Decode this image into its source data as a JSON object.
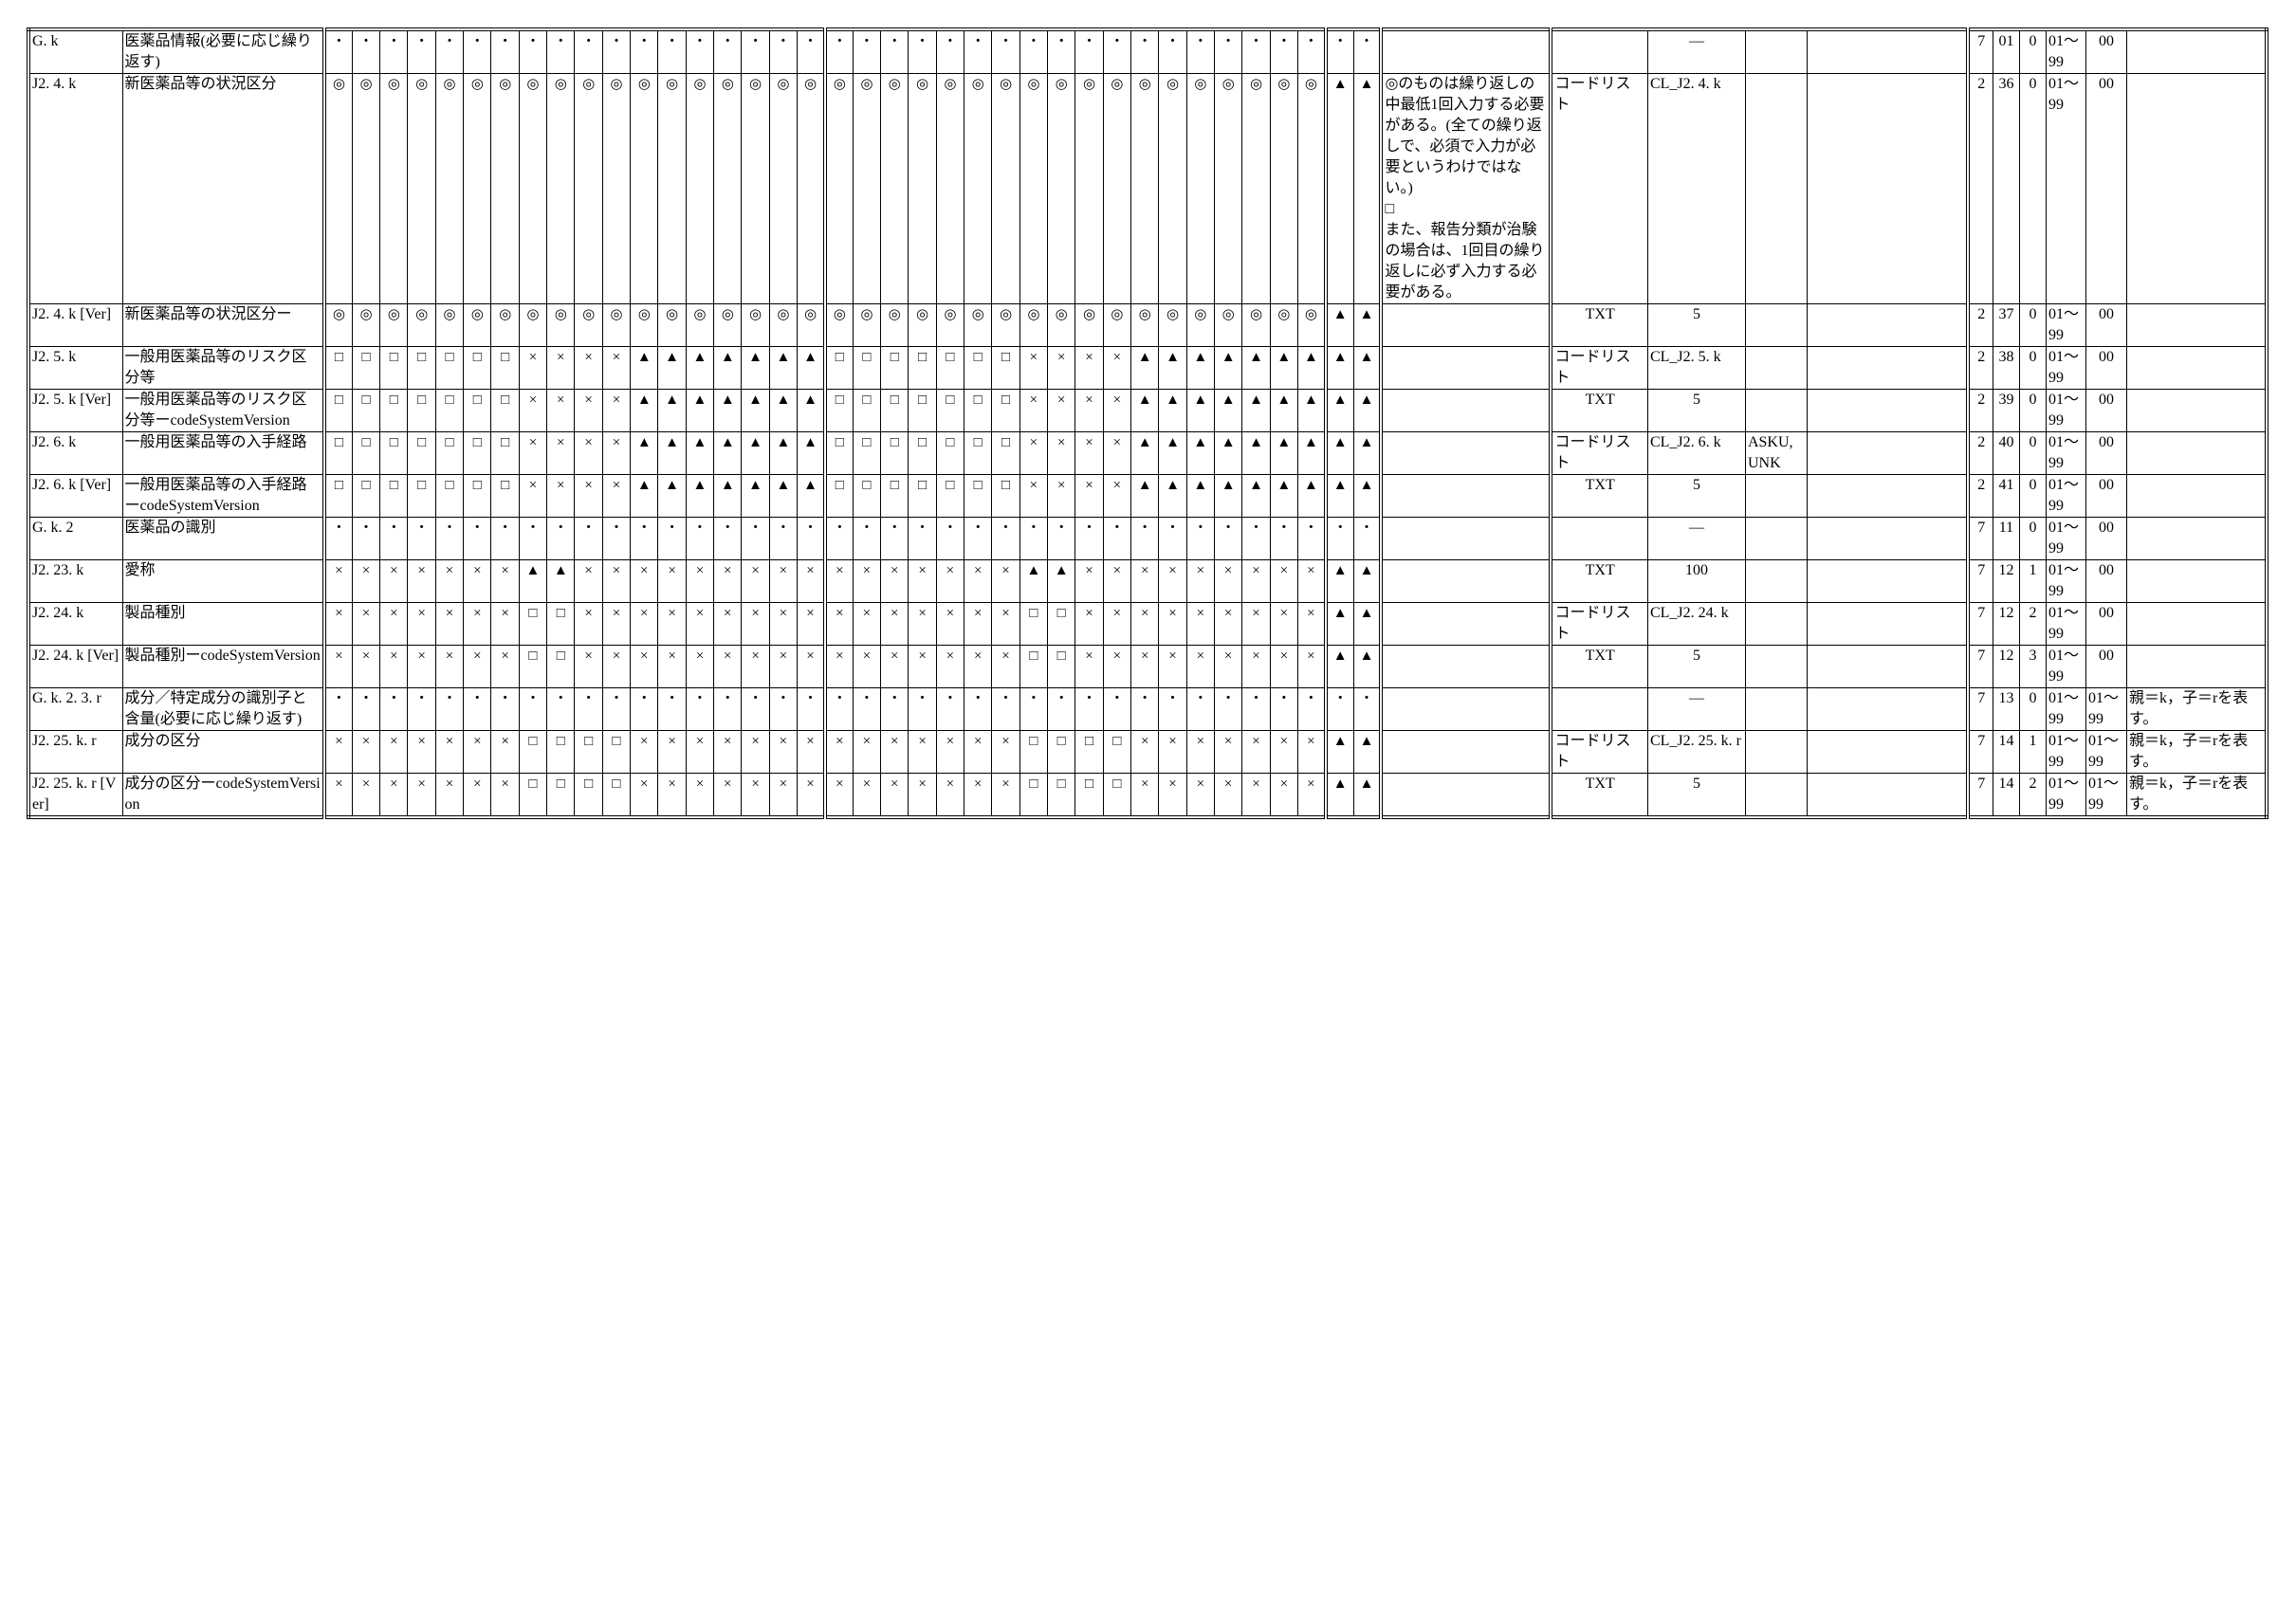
{
  "rows": [
    {
      "id": "G. k",
      "name": "医薬品情報(必要に応じ繰り返す)",
      "marks": "・・・・・・・・・・・・・・・・・・・・・・・・・・・・・・・・・・・・・・",
      "remarks": [],
      "type": "",
      "code": "—",
      "values": "",
      "blank": "",
      "c1": "7",
      "c2": "01",
      "c3": "0",
      "c4": "01～99",
      "c5": "00",
      "note": ""
    },
    {
      "id": "J2. 4. k",
      "name": "新医薬品等の状況区分",
      "marks": "◎◎◎◎◎◎◎◎◎◎◎◎◎◎◎◎◎◎◎◎◎◎◎◎◎◎◎◎◎◎◎◎◎◎◎◎▲▲",
      "remarks": [
        "◎のものは繰り返しの中最低1回入力する必要がある。(全ての繰り返しで、必須で入力が必要というわけではない。)",
        "□",
        "また、報告分類が治験の場合は、1回目の繰り返しに必ず入力する必要がある。"
      ],
      "type": "コードリスト",
      "code": "CL_J2. 4. k",
      "values": "",
      "blank": "",
      "c1": "2",
      "c2": "36",
      "c3": "0",
      "c4": "01～99",
      "c5": "00",
      "note": ""
    },
    {
      "id": "J2. 4. k [Ver]",
      "name": "新医薬品等の状況区分ー",
      "marks": "◎◎◎◎◎◎◎◎◎◎◎◎◎◎◎◎◎◎◎◎◎◎◎◎◎◎◎◎◎◎◎◎◎◎◎◎▲▲",
      "remarks": [],
      "type": "TXT",
      "code": "5",
      "values": "",
      "blank": "",
      "c1": "2",
      "c2": "37",
      "c3": "0",
      "c4": "01～99",
      "c5": "00",
      "note": ""
    },
    {
      "id": "J2. 5. k",
      "name": "一般用医薬品等のリスク区分等",
      "marks": "□□□□□□□××××▲▲▲▲▲▲▲□□□□□□□××××▲▲▲▲▲▲▲▲▲",
      "remarks": [],
      "type": "コードリスト",
      "code": "CL_J2. 5. k",
      "values": "",
      "blank": "",
      "c1": "2",
      "c2": "38",
      "c3": "0",
      "c4": "01～99",
      "c5": "00",
      "note": ""
    },
    {
      "id": "J2. 5. k [Ver]",
      "name": "一般用医薬品等のリスク区分等ーcodeSystemVersion",
      "marks": "□□□□□□□××××▲▲▲▲▲▲▲□□□□□□□××××▲▲▲▲▲▲▲▲▲",
      "remarks": [],
      "type": "TXT",
      "code": "5",
      "values": "",
      "blank": "",
      "c1": "2",
      "c2": "39",
      "c3": "0",
      "c4": "01～99",
      "c5": "00",
      "note": ""
    },
    {
      "id": "J2. 6. k",
      "name": "一般用医薬品等の入手経路",
      "marks": "□□□□□□□××××▲▲▲▲▲▲▲□□□□□□□××××▲▲▲▲▲▲▲▲▲",
      "remarks": [],
      "type": "コードリスト",
      "code": "CL_J2. 6. k",
      "values": "ASKU, UNK",
      "blank": "",
      "c1": "2",
      "c2": "40",
      "c3": "0",
      "c4": "01～99",
      "c5": "00",
      "note": ""
    },
    {
      "id": "J2. 6. k [Ver]",
      "name": "一般用医薬品等の入手経路ーcodeSystemVersion",
      "marks": "□□□□□□□××××▲▲▲▲▲▲▲□□□□□□□××××▲▲▲▲▲▲▲▲▲",
      "remarks": [],
      "type": "TXT",
      "code": "5",
      "values": "",
      "blank": "",
      "c1": "2",
      "c2": "41",
      "c3": "0",
      "c4": "01～99",
      "c5": "00",
      "note": ""
    },
    {
      "id": "G. k. 2",
      "name": "医薬品の識別",
      "marks": "・・・・・・・・・・・・・・・・・・・・・・・・・・・・・・・・・・・・・・",
      "remarks": [],
      "type": "",
      "code": "—",
      "values": "",
      "blank": "",
      "c1": "7",
      "c2": "11",
      "c3": "0",
      "c4": "01～99",
      "c5": "00",
      "note": ""
    },
    {
      "id": "J2. 23. k",
      "name": "愛称",
      "marks": "×××××××▲▲××××××××××××××××▲▲×××××××××▲▲",
      "remarks": [],
      "type": "TXT",
      "code": "100",
      "values": "",
      "blank": "",
      "c1": "7",
      "c2": "12",
      "c3": "1",
      "c4": "01～99",
      "c5": "00",
      "note": ""
    },
    {
      "id": "J2. 24. k",
      "name": "製品種別",
      "marks": "×××××××□□××××××××××××××××□□×××××××××▲▲",
      "remarks": [],
      "type": "コードリスト",
      "code": "CL_J2. 24. k",
      "values": "",
      "blank": "",
      "c1": "7",
      "c2": "12",
      "c3": "2",
      "c4": "01～99",
      "c5": "00",
      "note": ""
    },
    {
      "id": "J2. 24. k [Ver]",
      "name": "製品種別ーcodeSystemVersion",
      "marks": "×××××××□□××××××××××××××××□□×××××××××▲▲",
      "remarks": [],
      "type": "TXT",
      "code": "5",
      "values": "",
      "blank": "",
      "c1": "7",
      "c2": "12",
      "c3": "3",
      "c4": "01～99",
      "c5": "00",
      "note": ""
    },
    {
      "id": "G. k. 2. 3. r",
      "name": "成分／特定成分の識別子と含量(必要に応じ繰り返す)",
      "marks": "・・・・・・・・・・・・・・・・・・・・・・・・・・・・・・・・・・・・・・",
      "remarks": [],
      "type": "",
      "code": "—",
      "values": "",
      "blank": "",
      "c1": "7",
      "c2": "13",
      "c3": "0",
      "c4": "01～99",
      "c5": "01～99",
      "note": "親＝k，子＝rを表す。"
    },
    {
      "id": "J2. 25. k. r",
      "name": "成分の区分",
      "marks": "×××××××□□□□××××××××××××××□□□□×××××××▲▲",
      "remarks": [],
      "type": "コードリスト",
      "code": "CL_J2. 25. k. r",
      "values": "",
      "blank": "",
      "c1": "7",
      "c2": "14",
      "c3": "1",
      "c4": "01～99",
      "c5": "01～99",
      "note": "親＝k，子＝rを表す。"
    },
    {
      "id": "J2. 25. k. r [Ver]",
      "name": "成分の区分ーcodeSystemVersion",
      "marks": "×××××××□□□□××××××××××××××□□□□×××××××▲▲",
      "remarks": [],
      "type": "TXT",
      "code": "5",
      "values": "",
      "blank": "",
      "c1": "7",
      "c2": "14",
      "c3": "2",
      "c4": "01～99",
      "c5": "01～99",
      "note": "親＝k，子＝rを表す。"
    }
  ]
}
